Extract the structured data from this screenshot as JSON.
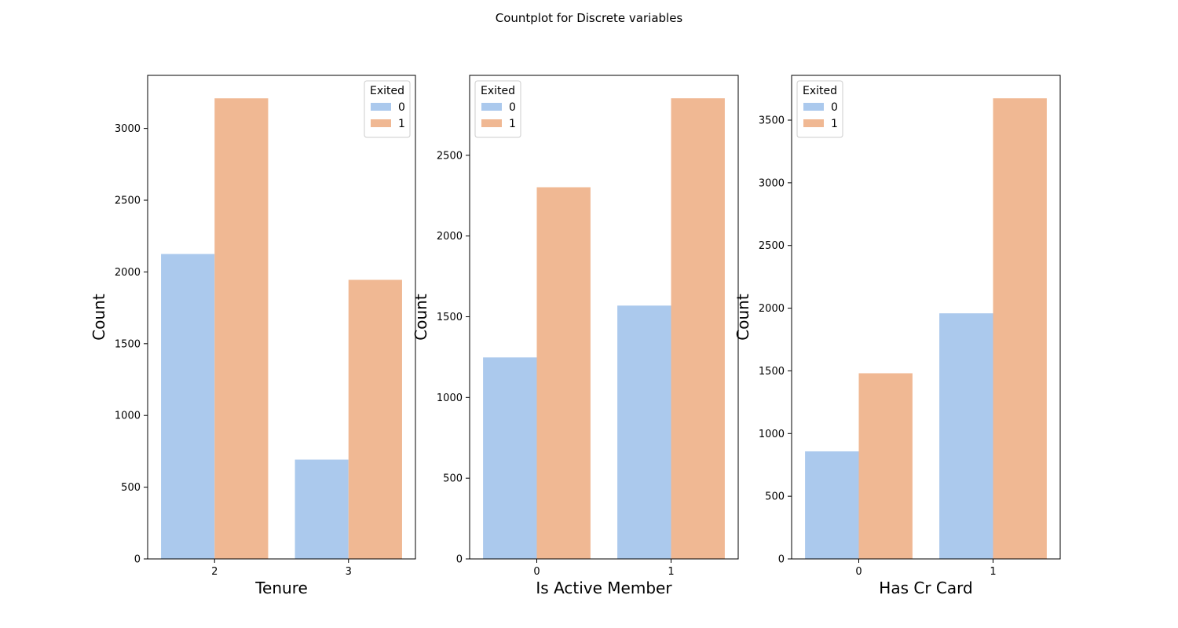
{
  "figure_title": "Countplot for Discrete variables",
  "colors": {
    "0": "#abc9ed",
    "1": "#f0b893"
  },
  "chart_data": [
    {
      "type": "bar",
      "xlabel": "Tenure",
      "ylabel": "Count",
      "categories": [
        "2",
        "3"
      ],
      "series": [
        {
          "name": "0",
          "values": [
            2125,
            692
          ]
        },
        {
          "name": "1",
          "values": [
            3210,
            1945
          ]
        }
      ],
      "ylim": [
        0,
        3370
      ],
      "yticks": [
        0,
        500,
        1000,
        1500,
        2000,
        2500,
        3000
      ],
      "legend": {
        "title": "Exited",
        "position": "top-right"
      }
    },
    {
      "type": "bar",
      "xlabel": "Is Active Member",
      "ylabel": "Count",
      "categories": [
        "0",
        "1"
      ],
      "series": [
        {
          "name": "0",
          "values": [
            1248,
            1569
          ]
        },
        {
          "name": "1",
          "values": [
            2302,
            2853
          ]
        }
      ],
      "ylim": [
        0,
        2995
      ],
      "yticks": [
        0,
        500,
        1000,
        1500,
        2000,
        2500
      ],
      "legend": {
        "title": "Exited",
        "position": "top-left"
      }
    },
    {
      "type": "bar",
      "xlabel": "Has Cr Card",
      "ylabel": "Count",
      "categories": [
        "0",
        "1"
      ],
      "series": [
        {
          "name": "0",
          "values": [
            858,
            1959
          ]
        },
        {
          "name": "1",
          "values": [
            1481,
            3674
          ]
        }
      ],
      "ylim": [
        0,
        3857
      ],
      "yticks": [
        0,
        500,
        1000,
        1500,
        2000,
        2500,
        3000,
        3500
      ],
      "legend": {
        "title": "Exited",
        "position": "top-left"
      }
    }
  ]
}
